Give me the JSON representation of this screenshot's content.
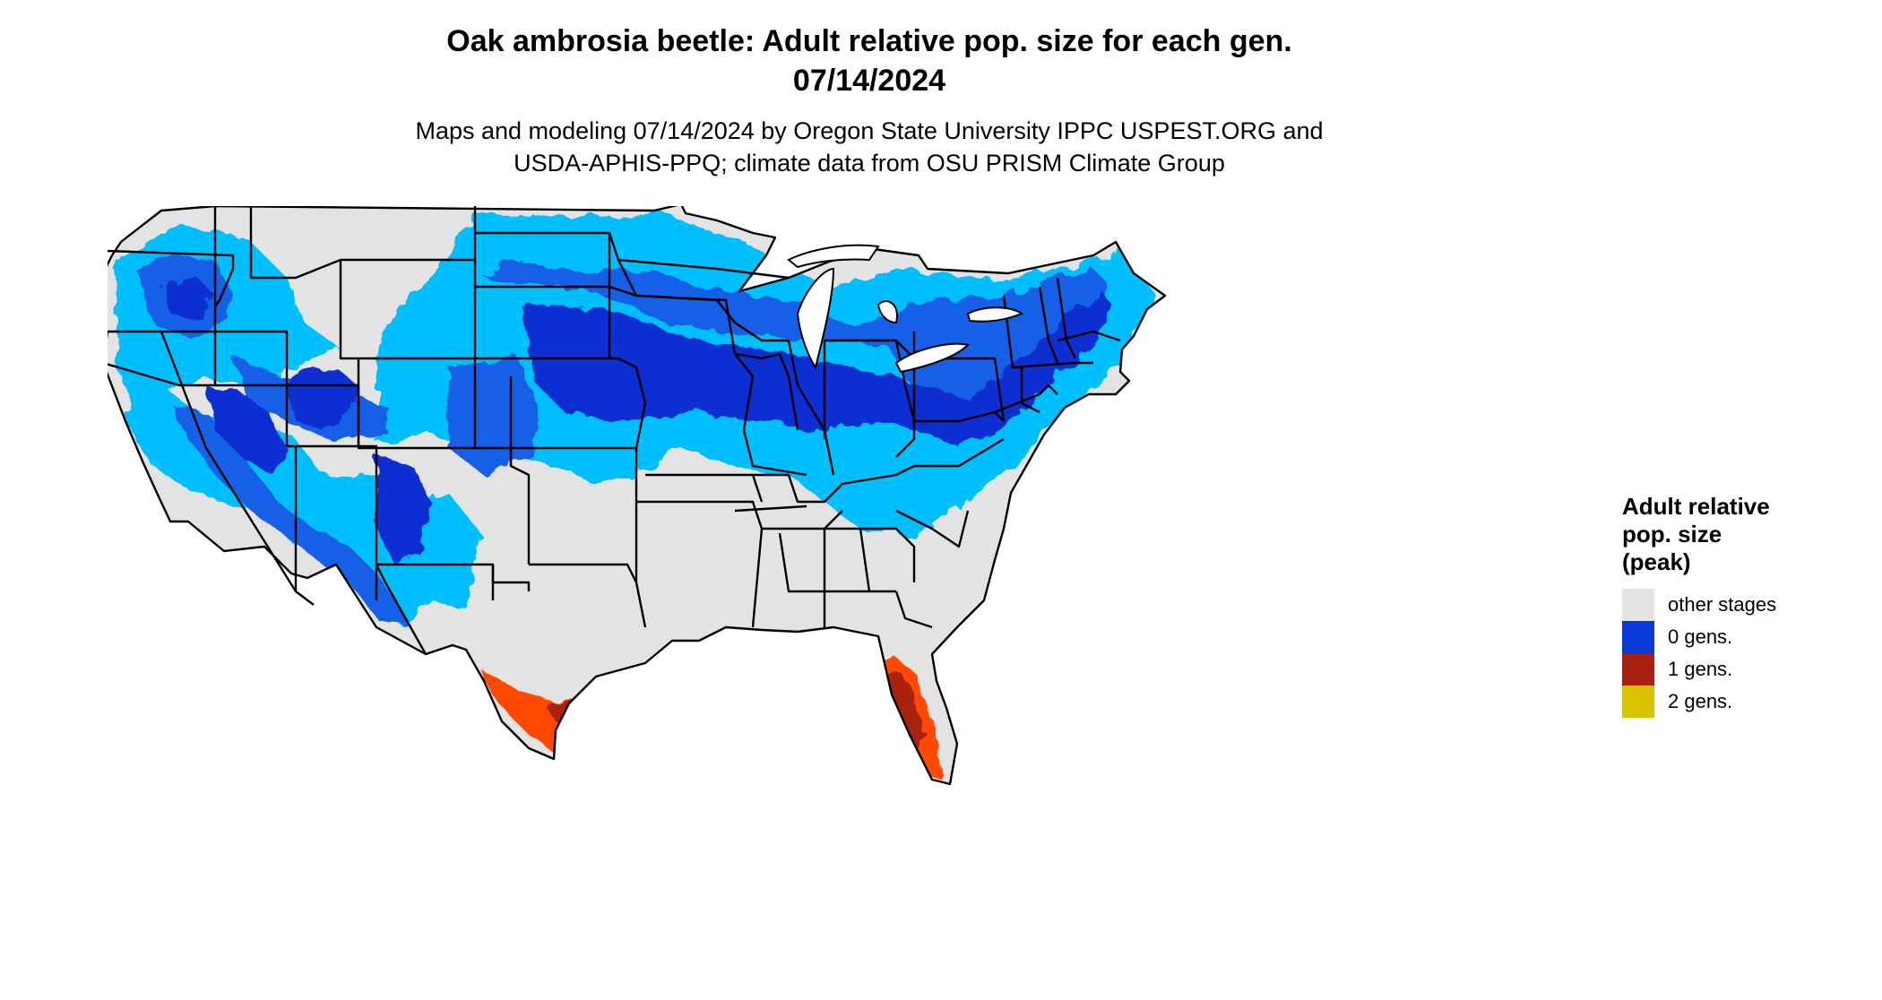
{
  "header": {
    "title_line1": "Oak ambrosia beetle: Adult relative pop. size for each gen.",
    "title_line2": "07/14/2024",
    "subtitle_line1": "Maps and modeling 07/14/2024 by Oregon State University IPPC USPEST.ORG and",
    "subtitle_line2": "USDA-APHIS-PPQ; climate data from OSU PRISM Climate Group"
  },
  "legend": {
    "title_line1": "Adult relative",
    "title_line2": "pop. size",
    "title_line3": "(peak)",
    "items": [
      {
        "label": "other stages",
        "color": "#e3e3e3"
      },
      {
        "label": "0 gens.",
        "color": "#0a3ad6"
      },
      {
        "label": "1 gens.",
        "color": "#a8210e"
      },
      {
        "label": "2 gens.",
        "color": "#d9c200"
      }
    ]
  },
  "map": {
    "region": "Contiguous United States",
    "colors": {
      "land": "#e3e3e3",
      "light_blue": "#00bfff",
      "medium_blue": "#1560e8",
      "dark_blue": "#0a2fd0",
      "orange": "#ff4a00",
      "dark_red": "#a8210e",
      "border": "#000000"
    }
  }
}
